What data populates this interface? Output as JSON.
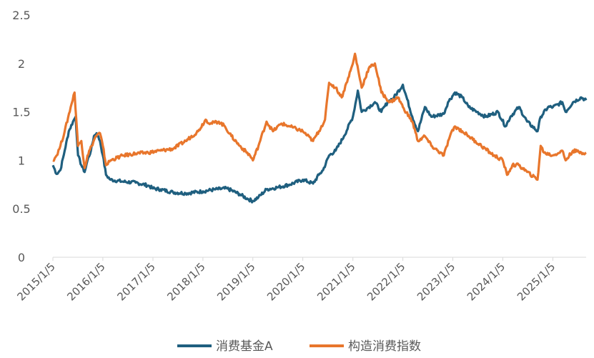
{
  "chart_data": {
    "type": "line",
    "title": "",
    "xlabel": "",
    "ylabel": "",
    "ylim": [
      0,
      2.5
    ],
    "yticks": [
      "0",
      "0.5",
      "1",
      "1.5",
      "2",
      "2.5"
    ],
    "xlim": [
      "2015-01-05",
      "2025-09-05"
    ],
    "xticks": [
      "2015/1/5",
      "2016/1/5",
      "2017/1/5",
      "2018/1/5",
      "2019/1/5",
      "2020/1/5",
      "2021/1/5",
      "2022/1/5",
      "2023/1/5",
      "2024/1/5",
      "2025/1/5"
    ],
    "grid": false,
    "legend_position": "bottom",
    "series": [
      {
        "name": "消费基金A",
        "color": "#1f5f7f",
        "points": [
          [
            "2015-01-05",
            0.95
          ],
          [
            "2015-02-01",
            0.86
          ],
          [
            "2015-03-01",
            0.9
          ],
          [
            "2015-04-01",
            1.1
          ],
          [
            "2015-05-01",
            1.3
          ],
          [
            "2015-06-01",
            1.4
          ],
          [
            "2015-06-20",
            1.45
          ],
          [
            "2015-07-08",
            1.05
          ],
          [
            "2015-08-01",
            0.95
          ],
          [
            "2015-08-25",
            0.88
          ],
          [
            "2015-09-15",
            1.0
          ],
          [
            "2015-10-10",
            1.1
          ],
          [
            "2015-11-01",
            1.25
          ],
          [
            "2015-11-20",
            1.28
          ],
          [
            "2015-12-15",
            1.2
          ],
          [
            "2016-01-05",
            1.05
          ],
          [
            "2016-01-28",
            0.85
          ],
          [
            "2016-03-01",
            0.8
          ],
          [
            "2016-06-01",
            0.78
          ],
          [
            "2016-09-01",
            0.77
          ],
          [
            "2016-12-01",
            0.74
          ],
          [
            "2017-01-05",
            0.71
          ],
          [
            "2017-03-01",
            0.7
          ],
          [
            "2017-06-01",
            0.67
          ],
          [
            "2017-09-01",
            0.66
          ],
          [
            "2018-01-05",
            0.68
          ],
          [
            "2018-04-01",
            0.7
          ],
          [
            "2018-07-01",
            0.71
          ],
          [
            "2018-10-01",
            0.65
          ],
          [
            "2018-12-01",
            0.6
          ],
          [
            "2019-01-05",
            0.58
          ],
          [
            "2019-02-15",
            0.62
          ],
          [
            "2019-04-15",
            0.7
          ],
          [
            "2019-07-01",
            0.72
          ],
          [
            "2019-10-01",
            0.75
          ],
          [
            "2020-01-05",
            0.8
          ],
          [
            "2020-03-20",
            0.76
          ],
          [
            "2020-05-01",
            0.85
          ],
          [
            "2020-06-01",
            0.9
          ],
          [
            "2020-07-15",
            1.05
          ],
          [
            "2020-09-01",
            1.1
          ],
          [
            "2020-11-01",
            1.25
          ],
          [
            "2021-01-05",
            1.45
          ],
          [
            "2021-02-10",
            1.72
          ],
          [
            "2021-03-10",
            1.5
          ],
          [
            "2021-05-01",
            1.55
          ],
          [
            "2021-06-15",
            1.6
          ],
          [
            "2021-08-01",
            1.5
          ],
          [
            "2021-09-15",
            1.6
          ],
          [
            "2021-11-01",
            1.65
          ],
          [
            "2022-01-05",
            1.78
          ],
          [
            "2022-03-15",
            1.45
          ],
          [
            "2022-04-25",
            1.3
          ],
          [
            "2022-06-15",
            1.55
          ],
          [
            "2022-08-01",
            1.45
          ],
          [
            "2022-10-31",
            1.48
          ],
          [
            "2022-12-01",
            1.6
          ],
          [
            "2023-01-20",
            1.7
          ],
          [
            "2023-03-15",
            1.65
          ],
          [
            "2023-05-01",
            1.55
          ],
          [
            "2023-07-01",
            1.5
          ],
          [
            "2023-09-01",
            1.45
          ],
          [
            "2023-12-01",
            1.5
          ],
          [
            "2024-01-25",
            1.35
          ],
          [
            "2024-03-01",
            1.45
          ],
          [
            "2024-05-01",
            1.55
          ],
          [
            "2024-07-01",
            1.4
          ],
          [
            "2024-09-15",
            1.3
          ],
          [
            "2024-10-08",
            1.45
          ],
          [
            "2024-12-01",
            1.55
          ],
          [
            "2025-01-05",
            1.55
          ],
          [
            "2025-03-15",
            1.6
          ],
          [
            "2025-04-08",
            1.5
          ],
          [
            "2025-06-01",
            1.6
          ],
          [
            "2025-08-01",
            1.65
          ],
          [
            "2025-09-05",
            1.62
          ]
        ]
      },
      {
        "name": "构造消费指数",
        "color": "#e8762c",
        "points": [
          [
            "2015-01-05",
            1.0
          ],
          [
            "2015-02-01",
            1.05
          ],
          [
            "2015-03-01",
            1.15
          ],
          [
            "2015-04-01",
            1.3
          ],
          [
            "2015-05-15",
            1.55
          ],
          [
            "2015-06-12",
            1.7
          ],
          [
            "2015-07-08",
            1.15
          ],
          [
            "2015-08-01",
            1.2
          ],
          [
            "2015-08-25",
            0.92
          ],
          [
            "2015-09-15",
            1.05
          ],
          [
            "2015-10-15",
            1.15
          ],
          [
            "2015-11-15",
            1.25
          ],
          [
            "2015-12-15",
            1.28
          ],
          [
            "2016-01-05",
            1.15
          ],
          [
            "2016-01-28",
            0.95
          ],
          [
            "2016-03-01",
            1.0
          ],
          [
            "2016-06-01",
            1.05
          ],
          [
            "2016-09-01",
            1.07
          ],
          [
            "2016-12-01",
            1.08
          ],
          [
            "2017-03-01",
            1.1
          ],
          [
            "2017-06-01",
            1.12
          ],
          [
            "2017-09-01",
            1.2
          ],
          [
            "2017-12-01",
            1.3
          ],
          [
            "2018-01-25",
            1.42
          ],
          [
            "2018-03-01",
            1.38
          ],
          [
            "2018-05-01",
            1.4
          ],
          [
            "2018-06-15",
            1.35
          ],
          [
            "2018-08-01",
            1.25
          ],
          [
            "2018-10-01",
            1.15
          ],
          [
            "2018-12-15",
            1.05
          ],
          [
            "2019-01-05",
            1.0
          ],
          [
            "2019-02-15",
            1.15
          ],
          [
            "2019-04-15",
            1.4
          ],
          [
            "2019-06-01",
            1.3
          ],
          [
            "2019-08-01",
            1.38
          ],
          [
            "2019-10-01",
            1.35
          ],
          [
            "2020-01-05",
            1.3
          ],
          [
            "2020-03-20",
            1.2
          ],
          [
            "2020-05-01",
            1.3
          ],
          [
            "2020-06-15",
            1.42
          ],
          [
            "2020-07-15",
            1.8
          ],
          [
            "2020-09-01",
            1.75
          ],
          [
            "2020-10-15",
            1.65
          ],
          [
            "2020-12-01",
            1.85
          ],
          [
            "2021-01-05",
            2.0
          ],
          [
            "2021-01-20",
            2.1
          ],
          [
            "2021-03-10",
            1.75
          ],
          [
            "2021-05-01",
            1.95
          ],
          [
            "2021-06-15",
            2.0
          ],
          [
            "2021-08-01",
            1.7
          ],
          [
            "2021-10-01",
            1.6
          ],
          [
            "2021-12-01",
            1.65
          ],
          [
            "2022-01-05",
            1.55
          ],
          [
            "2022-03-15",
            1.4
          ],
          [
            "2022-04-25",
            1.2
          ],
          [
            "2022-06-15",
            1.25
          ],
          [
            "2022-08-01",
            1.15
          ],
          [
            "2022-10-31",
            1.05
          ],
          [
            "2022-12-15",
            1.25
          ],
          [
            "2023-01-20",
            1.35
          ],
          [
            "2023-03-15",
            1.3
          ],
          [
            "2023-05-01",
            1.25
          ],
          [
            "2023-08-01",
            1.15
          ],
          [
            "2023-11-01",
            1.05
          ],
          [
            "2024-01-05",
            1.0
          ],
          [
            "2024-02-05",
            0.85
          ],
          [
            "2024-03-15",
            0.95
          ],
          [
            "2024-05-01",
            0.95
          ],
          [
            "2024-07-01",
            0.88
          ],
          [
            "2024-09-15",
            0.8
          ],
          [
            "2024-10-08",
            1.15
          ],
          [
            "2024-11-01",
            1.08
          ],
          [
            "2025-01-05",
            1.05
          ],
          [
            "2025-03-15",
            1.1
          ],
          [
            "2025-04-08",
            1.0
          ],
          [
            "2025-06-01",
            1.1
          ],
          [
            "2025-08-01",
            1.08
          ],
          [
            "2025-09-05",
            1.08
          ]
        ]
      }
    ]
  }
}
